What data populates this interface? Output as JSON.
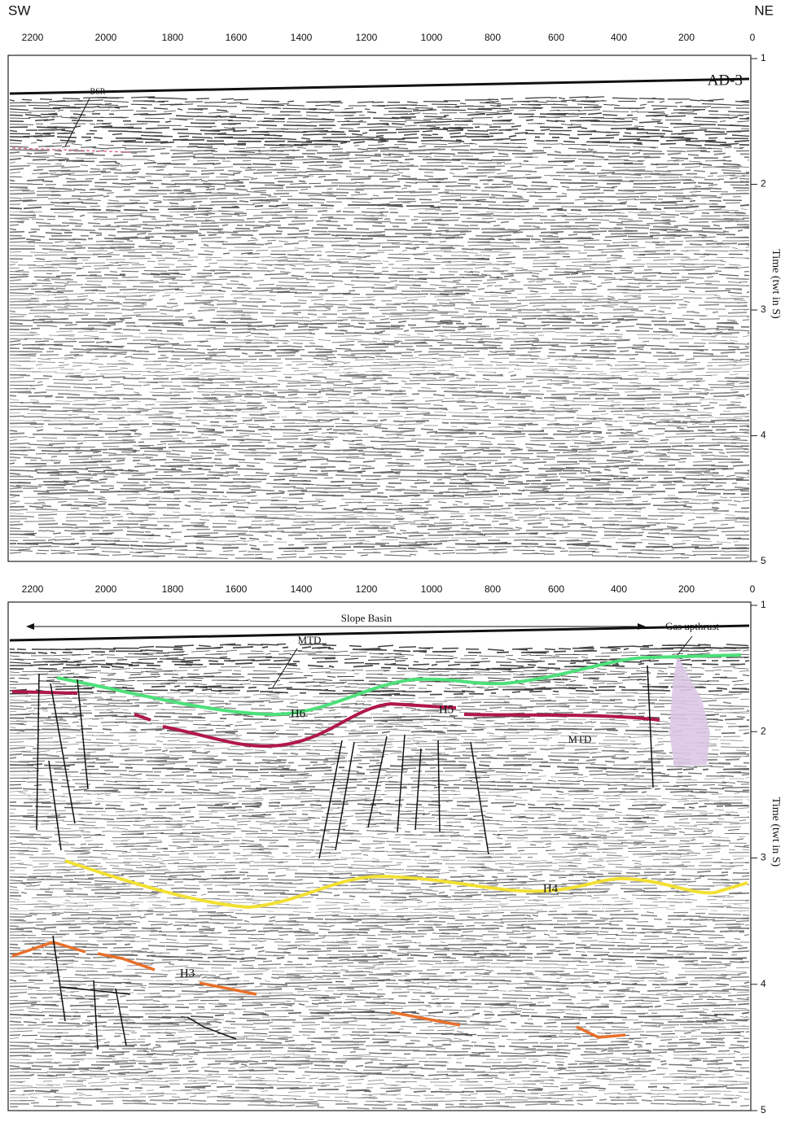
{
  "header": {
    "left": "SW",
    "right": "NE"
  },
  "panels": [
    {
      "x_ticks": [
        "2200",
        "2000",
        "1800",
        "1600",
        "1400",
        "1200",
        "1000",
        "800",
        "600",
        "400",
        "200",
        "0"
      ],
      "y_ticks": [
        "1",
        "2",
        "3",
        "4",
        "5"
      ],
      "y_axis_label": "Time (twt in S)",
      "labels": {
        "line_name": "AD-3",
        "bsr": "BSR"
      }
    },
    {
      "x_ticks": [
        "2200",
        "2000",
        "1800",
        "1600",
        "1400",
        "1200",
        "1000",
        "800",
        "600",
        "400",
        "200",
        "0"
      ],
      "y_ticks": [
        "1",
        "2",
        "3",
        "4",
        "5"
      ],
      "y_axis_label": "Time (twt in S)",
      "labels": {
        "slope_basin": "Slope Basin",
        "gas_upthrust": "Gas upthrust",
        "mtd_upper": "MTD",
        "mtd_right": "MTD",
        "h6": "H6",
        "h5": "H5",
        "h4": "H4",
        "h3": "H3"
      }
    }
  ]
}
